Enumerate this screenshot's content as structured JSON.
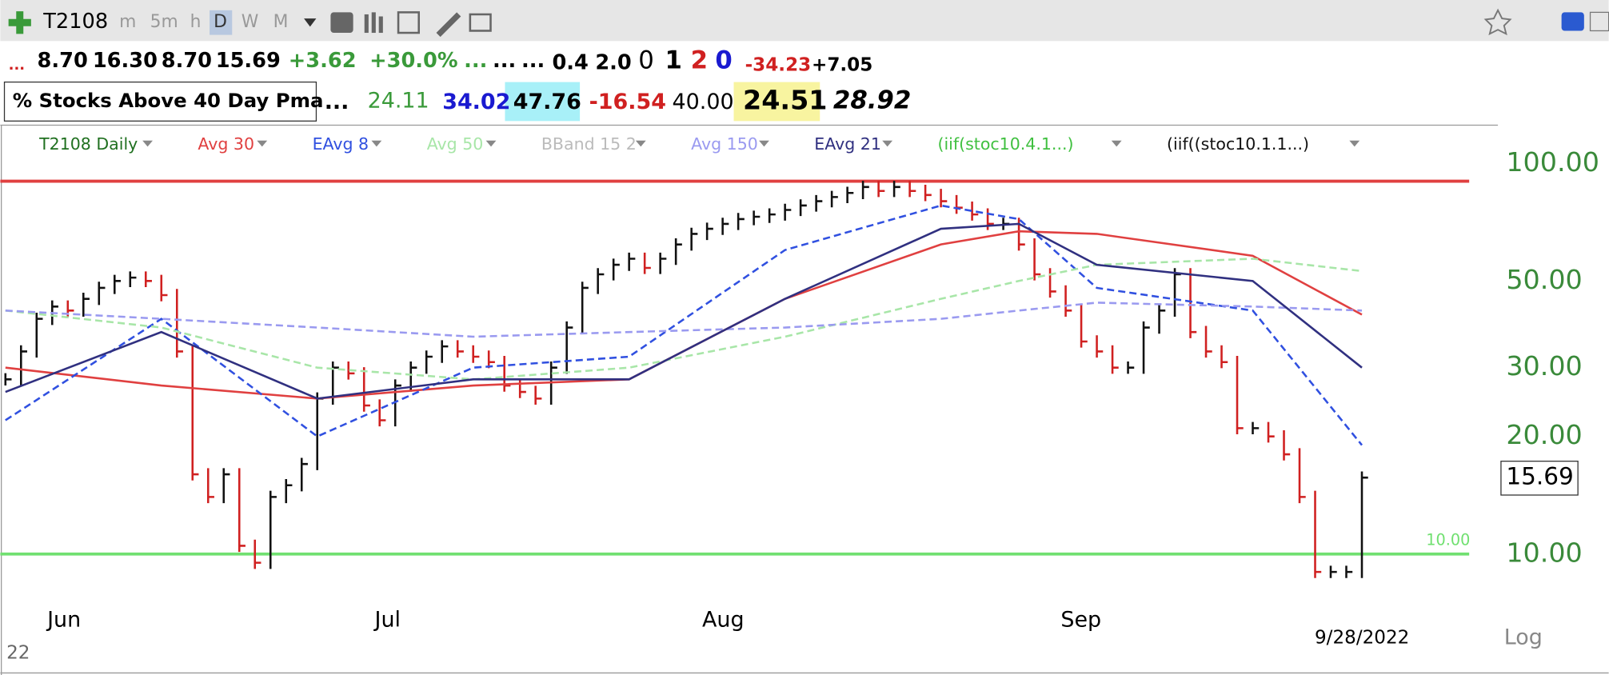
{
  "header": {
    "symbol": "T2108",
    "timeframes": [
      "m",
      "5m",
      "h",
      "D",
      "W",
      "M"
    ],
    "quote": [
      "...",
      "8.70",
      "16.30",
      "8.70",
      "15.69",
      "+3.62",
      "+30.0%",
      "...",
      "...",
      "...",
      "0.4",
      "2.0",
      "0",
      "1",
      "2",
      "0",
      "-34.23",
      "+7.05"
    ],
    "name": "% Stocks Above 40 Day Pma",
    "stats": [
      "...",
      "24.11",
      "34.02",
      "47.76",
      "-16.54",
      "40.00",
      "24.51",
      "28.92"
    ]
  },
  "chart_data": {
    "type": "ohlc",
    "log_scale": true,
    "ylim": [
      8,
      123
    ],
    "yticks": [
      {
        "value": 10,
        "label": "10.00"
      },
      {
        "value": 20,
        "label": "20.00"
      },
      {
        "value": 30,
        "label": "30.00"
      },
      {
        "value": 50,
        "label": "50.00"
      },
      {
        "value": 100,
        "label": "100.00"
      }
    ],
    "categories": [
      null,
      null,
      null,
      null,
      "Jun",
      null,
      null,
      null,
      null,
      null,
      null,
      null,
      null,
      null,
      null,
      null,
      null,
      null,
      null,
      null,
      null,
      null,
      null,
      null,
      null,
      "Jul",
      null,
      null,
      null,
      null,
      null,
      null,
      null,
      null,
      null,
      null,
      null,
      null,
      null,
      null,
      null,
      null,
      null,
      null,
      null,
      null,
      "Aug",
      null,
      null,
      null,
      null,
      null,
      null,
      null,
      null,
      null,
      null,
      null,
      null,
      null,
      null,
      null,
      null,
      null,
      null,
      null,
      null,
      null,
      null,
      "Sep",
      null,
      null,
      null,
      null,
      null,
      null,
      null,
      null,
      null,
      null,
      null,
      null,
      null,
      null,
      null,
      null,
      null,
      "9/28/2022"
    ],
    "series": [
      {
        "name": "T2108 Daily",
        "color": "#207020",
        "values": [
          28,
          33,
          40,
          43,
          42,
          45,
          48,
          50,
          51,
          50,
          46,
          33,
          16,
          14,
          16,
          10.5,
          9.5,
          14,
          15,
          17,
          25,
          30,
          29,
          24,
          22,
          27,
          30,
          32,
          34,
          33,
          32,
          31,
          27,
          26,
          25,
          30,
          38,
          48,
          52,
          55,
          57,
          54,
          57,
          62,
          66,
          68,
          70,
          72,
          73,
          74,
          76,
          78,
          80,
          82,
          84,
          87,
          85,
          87,
          85,
          83,
          80,
          77,
          74,
          70,
          70,
          62,
          52,
          47,
          42,
          35,
          33,
          30,
          30,
          38,
          42,
          52,
          37,
          33,
          31,
          21,
          21,
          20,
          18,
          14,
          9,
          9,
          9,
          15.69
        ],
        "value_labels": {
          "87": "15.69"
        }
      },
      {
        "name": "Avg 30",
        "color": "#e04040",
        "x": [
          0,
          10,
          20,
          30,
          40,
          50,
          60,
          65,
          70,
          80,
          87
        ],
        "values": [
          30,
          27,
          25,
          27,
          28,
          45,
          62,
          67,
          66,
          58,
          41
        ]
      },
      {
        "name": "EAvg 8",
        "color": "#3050e0",
        "dashed": true,
        "x": [
          0,
          10,
          20,
          30,
          40,
          50,
          60,
          65,
          70,
          80,
          87
        ],
        "values": [
          22,
          40,
          20,
          30,
          32,
          60,
          78,
          72,
          48,
          42,
          19
        ]
      },
      {
        "name": "Avg 50",
        "color": "#a8e6a8",
        "dashed": true,
        "x": [
          0,
          10,
          20,
          30,
          40,
          50,
          60,
          65,
          70,
          80,
          87
        ],
        "values": [
          42,
          38,
          30,
          28,
          30,
          36,
          45,
          50,
          55,
          57,
          53
        ]
      },
      {
        "name": "BBand 15 2",
        "color": "#bbbbbb"
      },
      {
        "name": "Avg 150",
        "color": "#9a9af0",
        "dashed": true,
        "x": [
          0,
          10,
          20,
          30,
          40,
          50,
          60,
          65,
          70,
          80,
          87
        ],
        "values": [
          42,
          40,
          38,
          36,
          37,
          38,
          40,
          42,
          44,
          43,
          42
        ]
      },
      {
        "name": "EAvg 21",
        "color": "#303080",
        "x": [
          0,
          10,
          20,
          30,
          40,
          50,
          60,
          65,
          70,
          80,
          87
        ],
        "values": [
          26,
          37,
          25,
          28,
          28,
          45,
          68,
          70,
          55,
          50,
          30
        ]
      },
      {
        "name": "(iif(stoc10.4.1...)",
        "color": "#40c040"
      },
      {
        "name": "(iif((stoc10.1.1...)",
        "color": "#111111"
      }
    ],
    "reference_lines": [
      {
        "value": 90,
        "color": "#e04040"
      },
      {
        "value": 10,
        "color": "#70e070",
        "label": "10.00"
      }
    ],
    "scale": "Log"
  }
}
